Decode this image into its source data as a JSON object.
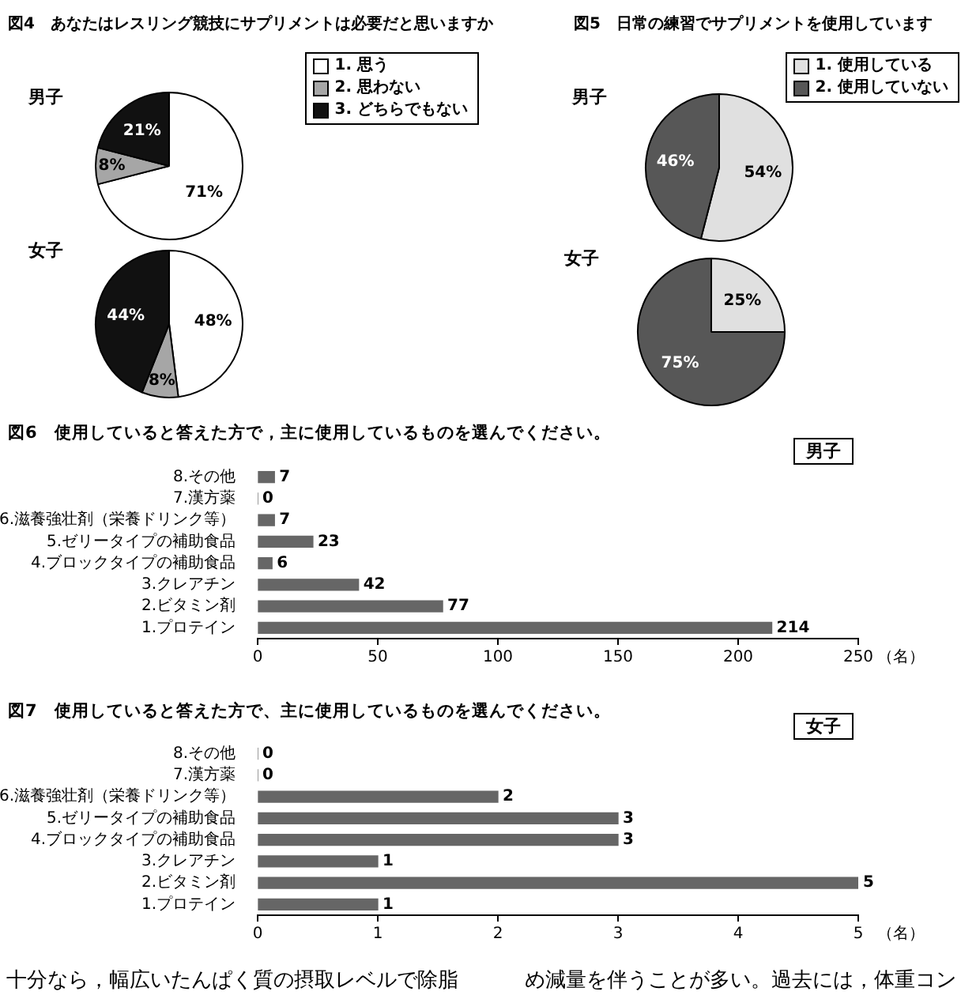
{
  "chart_data": [
    {
      "type": "pie",
      "title": "図4　あなたはレスリング競技にサプリメントは必要だと思いますか",
      "categories": [
        "1. 思う",
        "2. 思わない",
        "3. どちらでもない"
      ],
      "colors": [
        "#ffffff",
        "#a6a6a6",
        "#111111"
      ],
      "legend": "top right",
      "series": [
        {
          "name": "男子",
          "values": [
            71,
            8,
            21
          ],
          "value_labels": [
            "71%",
            "8%",
            "21%"
          ]
        },
        {
          "name": "女子",
          "values": [
            48,
            8,
            44
          ],
          "value_labels": [
            "48%",
            "8%",
            "44%"
          ]
        }
      ]
    },
    {
      "type": "pie",
      "title": "図5　日常の練習でサプリメントを使用しています",
      "categories": [
        "1. 使用している",
        "2. 使用していない"
      ],
      "colors": [
        "#e0e0e0",
        "#575757"
      ],
      "legend": "top right",
      "series": [
        {
          "name": "男子",
          "values": [
            54,
            46
          ],
          "value_labels": [
            "54%",
            "46%"
          ]
        },
        {
          "name": "女子",
          "values": [
            25,
            75
          ],
          "value_labels": [
            "25%",
            "75%"
          ]
        }
      ]
    },
    {
      "type": "bar",
      "orientation": "horizontal",
      "title": "図6　使用していると答えた方で，主に使用しているものを選んでください。",
      "subtitle": "男子",
      "categories": [
        "8.その他",
        "7.漢方薬",
        "6.滋養強壮剤（栄養ドリンク等）",
        "5.ゼリータイプの補助食品",
        "4.ブロックタイプの補助食品",
        "3.クレアチン",
        "2.ビタミン剤",
        "1.プロテイン"
      ],
      "values": [
        7,
        0,
        7,
        23,
        6,
        42,
        77,
        214
      ],
      "color": "#666666",
      "xlim": [
        0,
        250
      ],
      "xticks": [
        0,
        50,
        100,
        150,
        200,
        250
      ],
      "xlabel": "（名）",
      "data_labels": true
    },
    {
      "type": "bar",
      "orientation": "horizontal",
      "title": "図7　使用していると答えた方で、主に使用しているものを選んでください。",
      "subtitle": "女子",
      "categories": [
        "8.その他",
        "7.漢方薬",
        "6.滋養強壮剤（栄養ドリンク等）",
        "5.ゼリータイプの補助食品",
        "4.ブロックタイプの補助食品",
        "3.クレアチン",
        "2.ビタミン剤",
        "1.プロテイン"
      ],
      "values": [
        0,
        0,
        2,
        3,
        3,
        1,
        5,
        1
      ],
      "color": "#666666",
      "xlim": [
        0,
        5
      ],
      "xticks": [
        0,
        1,
        2,
        3,
        4,
        5
      ],
      "xlabel": "（名）",
      "data_labels": true,
      "annotations": [
        "十分なら，幅広いたんぱく質の摂取レベルで除脂",
        "め減量を伴うことが多い。過去には，体重コン"
      ]
    }
  ]
}
